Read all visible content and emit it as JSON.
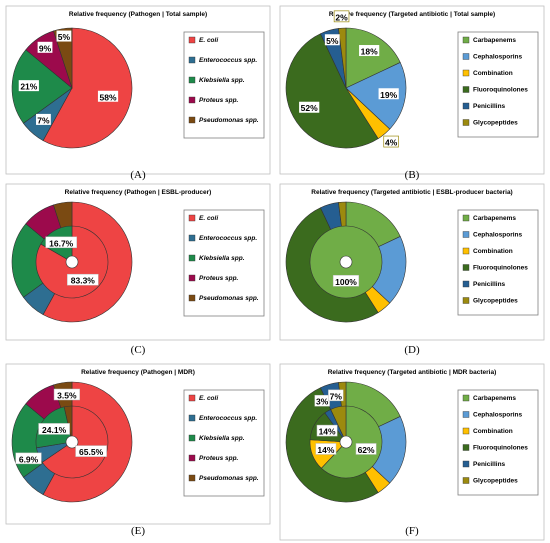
{
  "colors": {
    "pathogen": [
      "#ee4444",
      "#2e6e91",
      "#1e8a4a",
      "#9c0a4c",
      "#7a4a12"
    ],
    "antibiotic": [
      "#70ad47",
      "#5b9bd5",
      "#ffc000",
      "#3b6b1e",
      "#255e91",
      "#9c8a0e"
    ]
  },
  "chart_data": [
    {
      "id": "A",
      "type": "pie",
      "caption": "(A)",
      "title": "Relative frequency (Pathogen | Total sample)",
      "categories": [
        "E. coli",
        "Enterococcus spp.",
        "Klebsiella spp.",
        "Proteus spp.",
        "Pseudomonas spp."
      ],
      "italic": [
        true,
        true,
        true,
        true,
        true
      ],
      "values": [
        58,
        7,
        21,
        9,
        5
      ],
      "value_labels": [
        "58%",
        "7%",
        "21%",
        "9%",
        "5%"
      ],
      "legend": "right"
    },
    {
      "id": "B",
      "type": "pie",
      "caption": "(B)",
      "title": "Relative frequency (Targeted antibiotic | Total sample)",
      "categories": [
        "Carbapenems",
        "Cephalosporins",
        "Combination",
        "Fluoroquinolones",
        "Penicillins",
        "Glycopeptides"
      ],
      "italic": [
        false,
        false,
        false,
        false,
        false,
        false
      ],
      "values": [
        18,
        19,
        4,
        52,
        5,
        2
      ],
      "value_labels": [
        "18%",
        "19%",
        "4%",
        "52%",
        "5%",
        "2%"
      ],
      "legend": "right"
    },
    {
      "id": "C",
      "type": "donut",
      "caption": "(C)",
      "title": "Relative frequency (Pathogen | ESBL-producer)",
      "categories": [
        "E. coli",
        "Enterococcus spp.",
        "Klebsiella spp.",
        "Proteus spp.",
        "Pseudomonas spp."
      ],
      "italic": [
        true,
        true,
        true,
        true,
        true
      ],
      "inner_values": [
        83.3,
        0,
        16.7,
        0,
        0
      ],
      "inner_labels": [
        "83.3%",
        "",
        "16.7%",
        "",
        ""
      ],
      "outer_values": [
        58,
        7,
        21,
        9,
        5
      ],
      "legend": "right"
    },
    {
      "id": "D",
      "type": "donut",
      "caption": "(D)",
      "title": "Relative frequency (Targeted antibiotic | ESBL-producer bacteria)",
      "categories": [
        "Carbapenems",
        "Cephalosporins",
        "Combination",
        "Fluoroquinolones",
        "Penicillins",
        "Glycopeptides"
      ],
      "italic": [
        false,
        false,
        false,
        false,
        false,
        false
      ],
      "inner_values": [
        100,
        0,
        0,
        0,
        0,
        0
      ],
      "inner_labels": [
        "100%",
        "",
        "",
        "",
        "",
        ""
      ],
      "outer_values": [
        18,
        19,
        4,
        52,
        5,
        2
      ],
      "legend": "right"
    },
    {
      "id": "E",
      "type": "donut",
      "caption": "(E)",
      "title": "Relative frequency (Pathogen | MDR)",
      "categories": [
        "E. coli",
        "Enterococcus spp.",
        "Klebsiella spp.",
        "Proteus spp.",
        "Pseudomonas spp."
      ],
      "italic": [
        true,
        true,
        true,
        true,
        true
      ],
      "inner_values": [
        65.5,
        6.9,
        24.1,
        0,
        3.5
      ],
      "inner_labels": [
        "65.5%",
        "6.9%",
        "24.1%",
        "",
        "3.5%"
      ],
      "outer_values": [
        58,
        7,
        21,
        9,
        5
      ],
      "legend": "right"
    },
    {
      "id": "F",
      "type": "donut",
      "caption": "(F)",
      "title": "Relative frequency (Targeted antibiotic | MDR bacteria)",
      "categories": [
        "Carbapenems",
        "Cephalosporins",
        "Combination",
        "Fluoroquinolones",
        "Penicillins",
        "Glycopeptides"
      ],
      "italic": [
        false,
        false,
        false,
        false,
        false,
        false
      ],
      "inner_values": [
        62,
        0,
        14,
        14,
        3,
        7
      ],
      "inner_labels": [
        "62%",
        "",
        "14%",
        "14%",
        "3%",
        "7%"
      ],
      "outer_values": [
        18,
        19,
        4,
        52,
        5,
        2
      ],
      "legend": "right"
    }
  ]
}
